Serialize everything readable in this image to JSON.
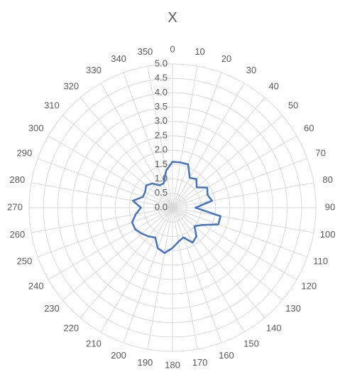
{
  "chart_data": {
    "type": "radar",
    "title": "X",
    "angles": [
      "0",
      "10",
      "20",
      "30",
      "40",
      "50",
      "60",
      "70",
      "80",
      "90",
      "100",
      "110",
      "120",
      "130",
      "140",
      "150",
      "160",
      "170",
      "180",
      "190",
      "200",
      "210",
      "220",
      "230",
      "240",
      "250",
      "260",
      "270",
      "280",
      "290",
      "300",
      "310",
      "320",
      "330",
      "340",
      "350"
    ],
    "radial_ticks": [
      "0.0",
      "0.5",
      "1.0",
      "1.5",
      "2.0",
      "2.5",
      "3.0",
      "3.5",
      "4.0",
      "4.5",
      "5.0"
    ],
    "rlim": [
      0,
      5
    ],
    "grid": true,
    "legend": "none",
    "series": [
      {
        "color": "#4472c4",
        "values": [
          1.6,
          1.6,
          1.6,
          1.2,
          1.3,
          1.1,
          1.4,
          1.3,
          1.4,
          0.8,
          1.7,
          1.7,
          1.2,
          1.0,
          1.3,
          1.4,
          1.1,
          1.2,
          1.4,
          1.6,
          1.5,
          1.2,
          1.3,
          1.4,
          1.5,
          1.5,
          1.3,
          1.1,
          1.4,
          1.1,
          1.1,
          1.2,
          1.1,
          0.9,
          0.9,
          1.3
        ]
      }
    ]
  }
}
